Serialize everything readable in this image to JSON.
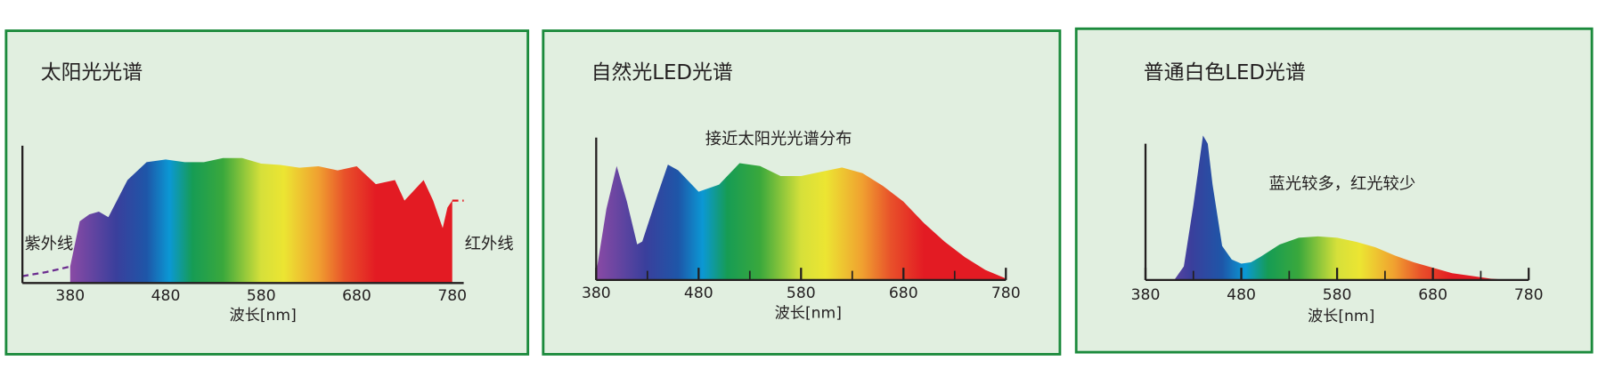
{
  "chart_data": [
    {
      "type": "area",
      "title": "太阳光光谱",
      "x_label": "波长[nm]",
      "annotations": [
        "紫外线",
        "红外线"
      ],
      "xlim": [
        330,
        792
      ],
      "ylim": [
        0,
        100
      ],
      "xticks": [
        380,
        480,
        580,
        680,
        780
      ],
      "tick_marks": false,
      "series": [
        {
          "x": [
            380,
            390,
            400,
            410,
            420,
            440,
            460,
            480,
            500,
            520,
            540,
            560,
            580,
            600,
            620,
            640,
            660,
            680,
            700,
            720,
            730,
            750,
            760,
            770,
            775,
            780
          ],
          "values": [
            12,
            45,
            50,
            52,
            48,
            75,
            88,
            90,
            88,
            88,
            91,
            91,
            87,
            86,
            84,
            85,
            82,
            85,
            72,
            75,
            60,
            75,
            60,
            40,
            55,
            60
          ],
          "fill": "spectrum"
        },
        {
          "x": [
            330,
            355,
            380
          ],
          "values": [
            5,
            8,
            12
          ],
          "color": "#6b2d8f",
          "dashed": true
        },
        {
          "x": [
            780,
            792
          ],
          "values": [
            60,
            60
          ],
          "color": "#e3131b",
          "dashed": true
        }
      ]
    },
    {
      "type": "area",
      "title": "自然光LED光谱",
      "x_label": "波长[nm]",
      "annotations": [
        "接近太阳光光谱分布"
      ],
      "xlim": [
        380,
        780
      ],
      "ylim": [
        0,
        100
      ],
      "xticks": [
        380,
        480,
        580,
        680,
        780
      ],
      "xminor": [
        430,
        530,
        630,
        730
      ],
      "tick_marks": true,
      "series": [
        {
          "x": [
            380,
            390,
            400,
            410,
            420,
            425,
            440,
            450,
            460,
            480,
            500,
            520,
            540,
            560,
            580,
            600,
            620,
            640,
            660,
            680,
            700,
            720,
            740,
            760,
            780
          ],
          "values": [
            5,
            50,
            80,
            55,
            25,
            27,
            60,
            81,
            77,
            62,
            67,
            82,
            80,
            73,
            73,
            76,
            79,
            75,
            66,
            55,
            40,
            27,
            16,
            7,
            1
          ],
          "fill": "spectrum"
        }
      ]
    },
    {
      "type": "area",
      "title": "普通白色LED光谱",
      "x_label": "波长[nm]",
      "annotations": [
        "蓝光较多，红光较少"
      ],
      "xlim": [
        380,
        780
      ],
      "ylim": [
        0,
        100
      ],
      "xticks": [
        380,
        480,
        580,
        680,
        780
      ],
      "xminor": [
        430,
        530,
        630,
        730
      ],
      "tick_marks": true,
      "series": [
        {
          "x": [
            410,
            420,
            430,
            440,
            445,
            450,
            460,
            470,
            480,
            490,
            500,
            520,
            540,
            560,
            580,
            600,
            620,
            640,
            660,
            680,
            700,
            720,
            740,
            760
          ],
          "values": [
            0,
            10,
            55,
            106,
            100,
            70,
            25,
            15,
            12,
            13,
            17,
            26,
            31,
            32,
            31,
            28,
            24,
            18,
            13,
            9,
            5,
            3,
            1,
            0
          ],
          "fill": "spectrum"
        }
      ]
    }
  ]
}
